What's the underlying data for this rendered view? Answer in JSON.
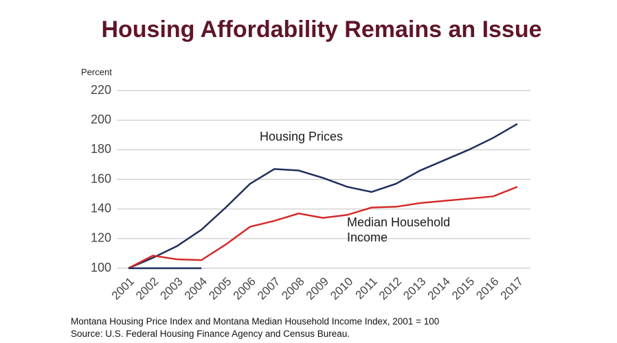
{
  "chart_data": {
    "type": "line",
    "title": "Housing Affordability Remains an Issue",
    "y_label": "Percent",
    "notes": [
      "Montana Housing Price Index and Montana Median Household Income Index, 2001 = 100",
      "Source:  U.S. Federal Housing Finance Agency and Census Bureau."
    ],
    "categories": [
      "2001",
      "2002",
      "2003",
      "2004",
      "2005",
      "2006",
      "2007",
      "2008",
      "2009",
      "2010",
      "2011",
      "2012",
      "2013",
      "2014",
      "2015",
      "2016",
      "2017"
    ],
    "series": [
      {
        "name": "Housing Prices",
        "color": "#1f2d5a",
        "values": [
          100,
          107,
          115,
          126,
          141,
          157,
          167,
          166,
          161,
          155,
          151.5,
          157,
          166,
          173,
          180,
          188,
          197.5
        ]
      },
      {
        "name": "Median Household Income",
        "color": "#d42a2a",
        "values": [
          100,
          108.5,
          106,
          105.5,
          116,
          128,
          132,
          137,
          134,
          136,
          141,
          141.5,
          144,
          145.5,
          147,
          148.5,
          155
        ]
      },
      {
        "color": "#1f2d5a",
        "values": [
          100,
          100,
          100,
          100,
          null,
          null,
          null,
          null,
          null,
          null,
          null,
          null,
          null,
          null,
          null,
          null,
          null
        ]
      }
    ],
    "ylim": [
      100,
      220
    ],
    "yticks": [
      100,
      120,
      140,
      160,
      180,
      200,
      220
    ],
    "grid": true
  }
}
